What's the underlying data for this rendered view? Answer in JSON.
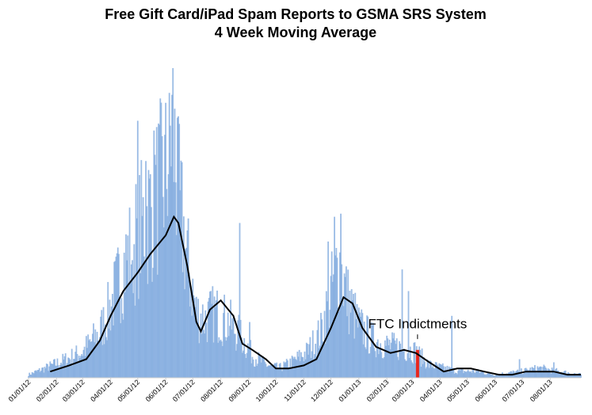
{
  "chart_data": {
    "type": "bar",
    "title_lines": [
      "Free Gift Card/iPad Spam Reports to GSMA SRS System",
      "4 Week Moving Average"
    ],
    "xlabel": "",
    "ylabel": "",
    "y_axis_labels_shown": false,
    "x_tick_labels": [
      "01/01/12",
      "02/01/12",
      "03/01/12",
      "04/01/12",
      "05/01/12",
      "06/01/12",
      "07/01/12",
      "08/01/12",
      "09/01/12",
      "10/01/12",
      "11/01/12",
      "12/01/12",
      "01/01/13",
      "02/01/13",
      "03/01/13",
      "04/01/13",
      "05/01/13",
      "06/01/13",
      "07/01/13",
      "08/01/13"
    ],
    "x_range": [
      "2012-01-01",
      "2013-09-04"
    ],
    "ylim": [
      0,
      100
    ],
    "bar_color": "#7aa6dc",
    "moving_average_color": "#000000",
    "highlight_color": "#e8261c",
    "annotation": {
      "text": "FTC Indictments",
      "date": "2013-03-07"
    },
    "highlight_date": "2013-03-07",
    "daily_anchor_points": [
      [
        "2012-01-01",
        1
      ],
      [
        "2012-01-20",
        3
      ],
      [
        "2012-02-15",
        6
      ],
      [
        "2012-03-01",
        8
      ],
      [
        "2012-03-20",
        14
      ],
      [
        "2012-04-01",
        22
      ],
      [
        "2012-04-15",
        34
      ],
      [
        "2012-05-01",
        44
      ],
      [
        "2012-05-15",
        52
      ],
      [
        "2012-06-01",
        62
      ],
      [
        "2012-06-08",
        78
      ],
      [
        "2012-06-15",
        55
      ],
      [
        "2012-06-25",
        36
      ],
      [
        "2012-07-05",
        20
      ],
      [
        "2012-07-15",
        18
      ],
      [
        "2012-07-25",
        20
      ],
      [
        "2012-08-10",
        17
      ],
      [
        "2012-08-25",
        12
      ],
      [
        "2012-09-05",
        7
      ],
      [
        "2012-09-20",
        4
      ],
      [
        "2012-10-05",
        3
      ],
      [
        "2012-10-20",
        5
      ],
      [
        "2012-11-05",
        8
      ],
      [
        "2012-11-20",
        14
      ],
      [
        "2012-12-01",
        26
      ],
      [
        "2012-12-10",
        36
      ],
      [
        "2012-12-20",
        24
      ],
      [
        "2013-01-01",
        16
      ],
      [
        "2013-01-15",
        12
      ],
      [
        "2013-02-01",
        10
      ],
      [
        "2013-02-20",
        9
      ],
      [
        "2013-03-05",
        8
      ],
      [
        "2013-03-20",
        4
      ],
      [
        "2013-04-05",
        3
      ],
      [
        "2013-04-20",
        2
      ],
      [
        "2013-05-10",
        2
      ],
      [
        "2013-06-01",
        1
      ],
      [
        "2013-07-01",
        2
      ],
      [
        "2013-07-20",
        3
      ],
      [
        "2013-08-10",
        2
      ],
      [
        "2013-09-04",
        1
      ]
    ],
    "spikes": [
      [
        "2012-05-01",
        83
      ],
      [
        "2012-05-10",
        70
      ],
      [
        "2012-05-20",
        72
      ],
      [
        "2012-05-28",
        78
      ],
      [
        "2012-06-05",
        92
      ],
      [
        "2012-06-09",
        100
      ],
      [
        "2012-06-14",
        84
      ],
      [
        "2012-04-10",
        40
      ],
      [
        "2012-04-25",
        38
      ],
      [
        "2012-08-22",
        50
      ],
      [
        "2012-09-02",
        18
      ],
      [
        "2012-12-05",
        52
      ],
      [
        "2012-12-12",
        53
      ],
      [
        "2012-11-28",
        44
      ],
      [
        "2013-02-18",
        35
      ],
      [
        "2013-02-25",
        28
      ],
      [
        "2013-04-14",
        20
      ],
      [
        "2013-06-28",
        6
      ],
      [
        "2013-08-05",
        5
      ]
    ],
    "moving_average": [
      [
        "2012-01-25",
        2
      ],
      [
        "2012-02-15",
        4
      ],
      [
        "2012-03-05",
        6
      ],
      [
        "2012-03-20",
        12
      ],
      [
        "2012-04-01",
        20
      ],
      [
        "2012-04-15",
        28
      ],
      [
        "2012-05-01",
        34
      ],
      [
        "2012-05-15",
        40
      ],
      [
        "2012-06-01",
        46
      ],
      [
        "2012-06-10",
        52
      ],
      [
        "2012-06-15",
        50
      ],
      [
        "2012-06-25",
        36
      ],
      [
        "2012-07-05",
        18
      ],
      [
        "2012-07-10",
        15
      ],
      [
        "2012-07-20",
        22
      ],
      [
        "2012-08-01",
        25
      ],
      [
        "2012-08-15",
        20
      ],
      [
        "2012-08-25",
        11
      ],
      [
        "2012-09-05",
        9
      ],
      [
        "2012-09-20",
        6
      ],
      [
        "2012-10-01",
        3
      ],
      [
        "2012-10-15",
        3
      ],
      [
        "2012-11-01",
        4
      ],
      [
        "2012-11-15",
        6
      ],
      [
        "2012-12-01",
        16
      ],
      [
        "2012-12-15",
        26
      ],
      [
        "2012-12-25",
        24
      ],
      [
        "2013-01-05",
        16
      ],
      [
        "2013-01-20",
        10
      ],
      [
        "2013-02-05",
        8
      ],
      [
        "2013-02-20",
        9
      ],
      [
        "2013-03-05",
        8
      ],
      [
        "2013-03-20",
        5
      ],
      [
        "2013-04-05",
        2
      ],
      [
        "2013-04-20",
        3
      ],
      [
        "2013-05-05",
        3
      ],
      [
        "2013-05-20",
        2
      ],
      [
        "2013-06-05",
        1
      ],
      [
        "2013-06-20",
        1
      ],
      [
        "2013-07-05",
        2
      ],
      [
        "2013-07-20",
        2
      ],
      [
        "2013-08-05",
        2
      ],
      [
        "2013-08-20",
        1
      ],
      [
        "2013-09-04",
        1
      ]
    ]
  }
}
